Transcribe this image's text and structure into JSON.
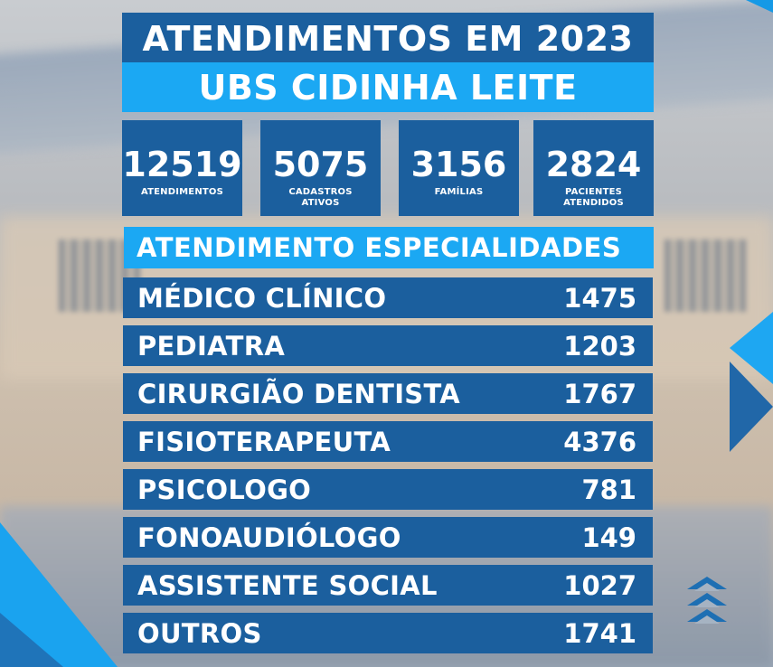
{
  "title": {
    "line1": "ATENDIMENTOS EM 2023",
    "line2": "UBS CIDINHA LEITE"
  },
  "stats": [
    {
      "value": "12519",
      "label_line1": "ATENDIMENTOS",
      "label_line2": ""
    },
    {
      "value": "5075",
      "label_line1": "CADASTROS",
      "label_line2": "ATIVOS"
    },
    {
      "value": "3156",
      "label_line1": "FAMÍLIAS",
      "label_line2": ""
    },
    {
      "value": "2824",
      "label_line1": "PACIENTES",
      "label_line2": "ATENDIDOS"
    }
  ],
  "specialties": {
    "header": "ATENDIMENTO ESPECIALIDADES",
    "rows": [
      {
        "name": "MÉDICO CLÍNICO",
        "value": "1475"
      },
      {
        "name": "PEDIATRA",
        "value": "1203"
      },
      {
        "name": "CIRURGIÃO DENTISTA",
        "value": "1767"
      },
      {
        "name": "FISIOTERAPEUTA",
        "value": "4376"
      },
      {
        "name": "PSICOLOGO",
        "value": "781"
      },
      {
        "name": "FONOAUDIÓLOGO",
        "value": "149"
      },
      {
        "name": "ASSISTENTE SOCIAL",
        "value": "1027"
      },
      {
        "name": "OUTROS",
        "value": "1741"
      }
    ]
  },
  "colors": {
    "dark_blue": "#1b5f9e",
    "light_blue": "#1ba8f3"
  }
}
